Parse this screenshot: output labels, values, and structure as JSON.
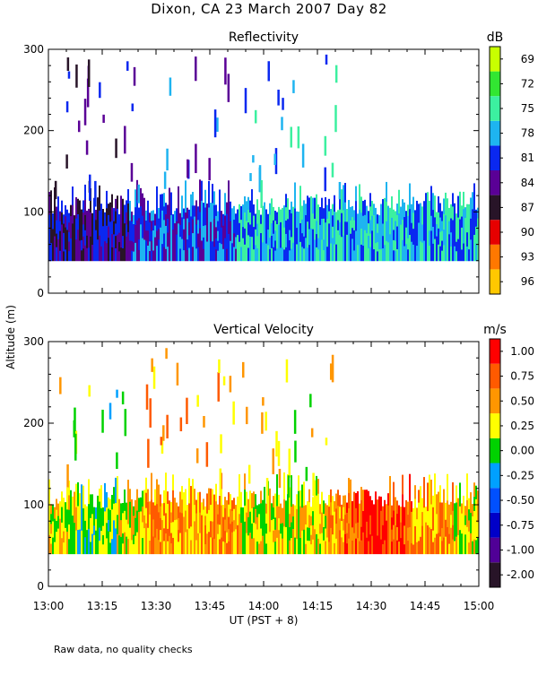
{
  "title": "Dixon, CA 23 March 2007  Day  82",
  "ylabel": "Altitude (m)",
  "xlabel": "UT  (PST + 8)",
  "footnote": "Raw data, no quality checks",
  "x_ticks": [
    "13:00",
    "13:15",
    "13:30",
    "13:45",
    "14:00",
    "14:15",
    "14:30",
    "14:45",
    "15:00"
  ],
  "chart_data": [
    {
      "type": "heatmap",
      "title": "Reflectivity",
      "units": "dB",
      "x_range_hours": [
        13.0,
        15.0
      ],
      "ylim": [
        0,
        300
      ],
      "y_ticks": [
        "0",
        "100",
        "200",
        "300"
      ],
      "colorbar_ticks": [
        "69",
        "72",
        "75",
        "78",
        "81",
        "84",
        "87",
        "90",
        "93",
        "96"
      ],
      "colorbar_colors": [
        "#c8ff00",
        "#32e632",
        "#3cf0a0",
        "#1eb4f0",
        "#0a28f0",
        "#5a0096",
        "#281428",
        "#e60000",
        "#ff7800",
        "#ffc800"
      ],
      "data_altitude_range_m": [
        40,
        120
      ],
      "dominant_value_by_time": [
        {
          "time": "13:00",
          "value": 84
        },
        {
          "time": "13:15",
          "value": 84
        },
        {
          "time": "13:30",
          "value": 81
        },
        {
          "time": "13:45",
          "value": 81
        },
        {
          "time": "14:00",
          "value": 78
        },
        {
          "time": "14:15",
          "value": 78
        },
        {
          "time": "14:30",
          "value": 78
        },
        {
          "time": "14:45",
          "value": 78
        },
        {
          "time": "15:00",
          "value": 78
        }
      ]
    },
    {
      "type": "heatmap",
      "title": "Vertical Velocity",
      "units": "m/s",
      "x_range_hours": [
        13.0,
        15.0
      ],
      "ylim": [
        0,
        300
      ],
      "y_ticks": [
        "0",
        "100",
        "200",
        "300"
      ],
      "colorbar_ticks": [
        "1.00",
        "0.75",
        "0.50",
        "0.25",
        "0.00",
        "-0.25",
        "-0.50",
        "-0.75",
        "-1.00",
        "-2.00"
      ],
      "colorbar_colors": [
        "#ff0000",
        "#ff5a00",
        "#ff9600",
        "#ffff00",
        "#00d200",
        "#00a0ff",
        "#0050ff",
        "#0000c8",
        "#500096",
        "#281428"
      ],
      "data_altitude_range_m": [
        40,
        120
      ],
      "dominant_value_by_time": [
        {
          "time": "13:00",
          "value": 0.25
        },
        {
          "time": "13:15",
          "value": 0.0
        },
        {
          "time": "13:30",
          "value": 0.5
        },
        {
          "time": "13:45",
          "value": 0.5
        },
        {
          "time": "14:00",
          "value": 0.25
        },
        {
          "time": "14:15",
          "value": 0.25
        },
        {
          "time": "14:30",
          "value": 1.0
        },
        {
          "time": "14:45",
          "value": 0.5
        },
        {
          "time": "15:00",
          "value": 0.25
        }
      ]
    }
  ]
}
